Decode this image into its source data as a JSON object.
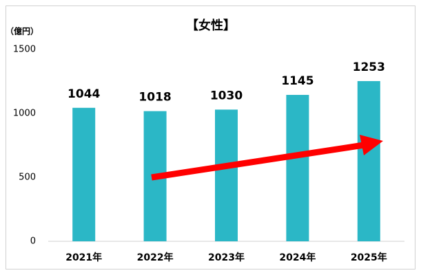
{
  "chart_data": {
    "type": "bar",
    "title": "【女性】",
    "y_axis_label": "（億円）",
    "categories": [
      "2021年",
      "2022年",
      "2023年",
      "2024年",
      "2025年"
    ],
    "values": [
      1044,
      1018,
      1030,
      1145,
      1253
    ],
    "color": "#2bb7c6",
    "ylim": [
      0,
      1500
    ],
    "yticks": [
      0,
      500,
      1000,
      1500
    ],
    "grid": false
  }
}
